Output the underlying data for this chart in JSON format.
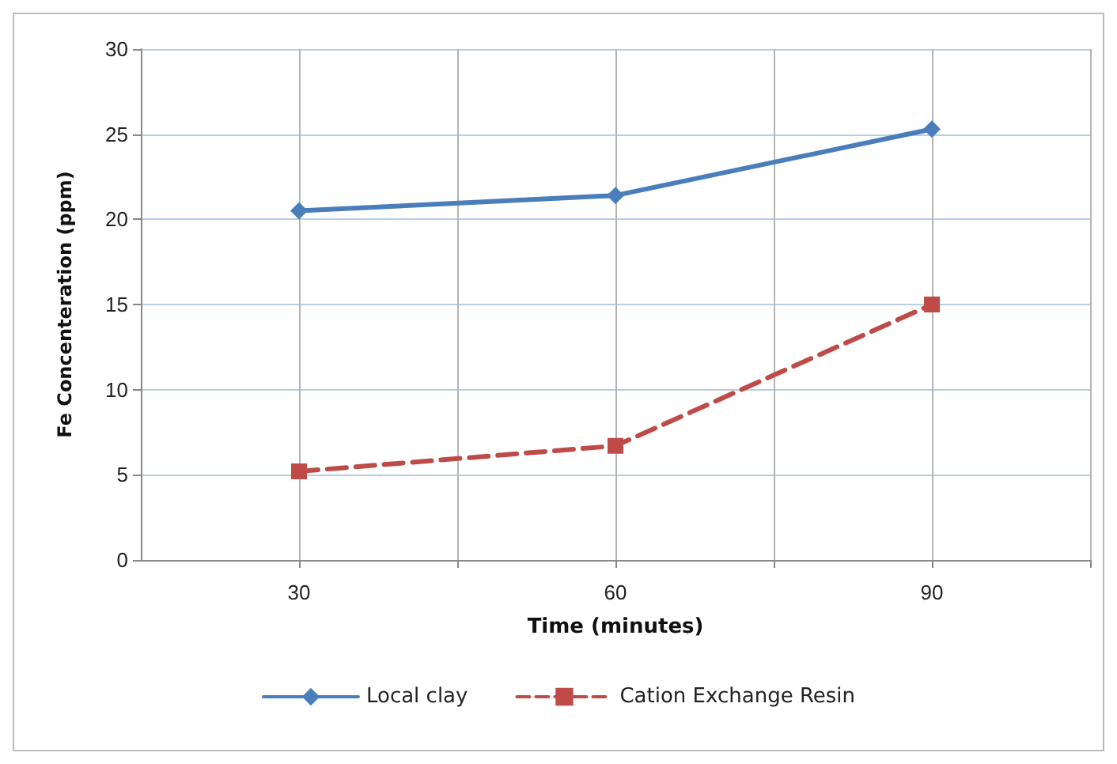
{
  "chart_data": {
    "type": "line",
    "xlabel": "Time (minutes)",
    "ylabel": "Fe Concenteration (ppm)",
    "x": [
      30,
      60,
      90
    ],
    "series": [
      {
        "name": "Local clay",
        "color": "#4a7ebb",
        "values": [
          20.5,
          21.4,
          25.3
        ],
        "marker": "diamond",
        "line_style": "solid"
      },
      {
        "name": "Cation Exchange Resin",
        "color": "#be4b48",
        "values": [
          5.2,
          6.7,
          15.0
        ],
        "marker": "square",
        "line_style": "dashed"
      }
    ],
    "xlim": [
      15,
      105
    ],
    "xticks": [
      30,
      {
        "value": 45,
        "label": null
      },
      60,
      {
        "value": 75,
        "label": null
      },
      90,
      {
        "value": 105,
        "label": null
      }
    ],
    "ylim": [
      0,
      30
    ],
    "yticks": [
      0,
      5,
      10,
      15,
      20,
      25,
      30
    ],
    "grid": true,
    "legend": "bottom"
  }
}
